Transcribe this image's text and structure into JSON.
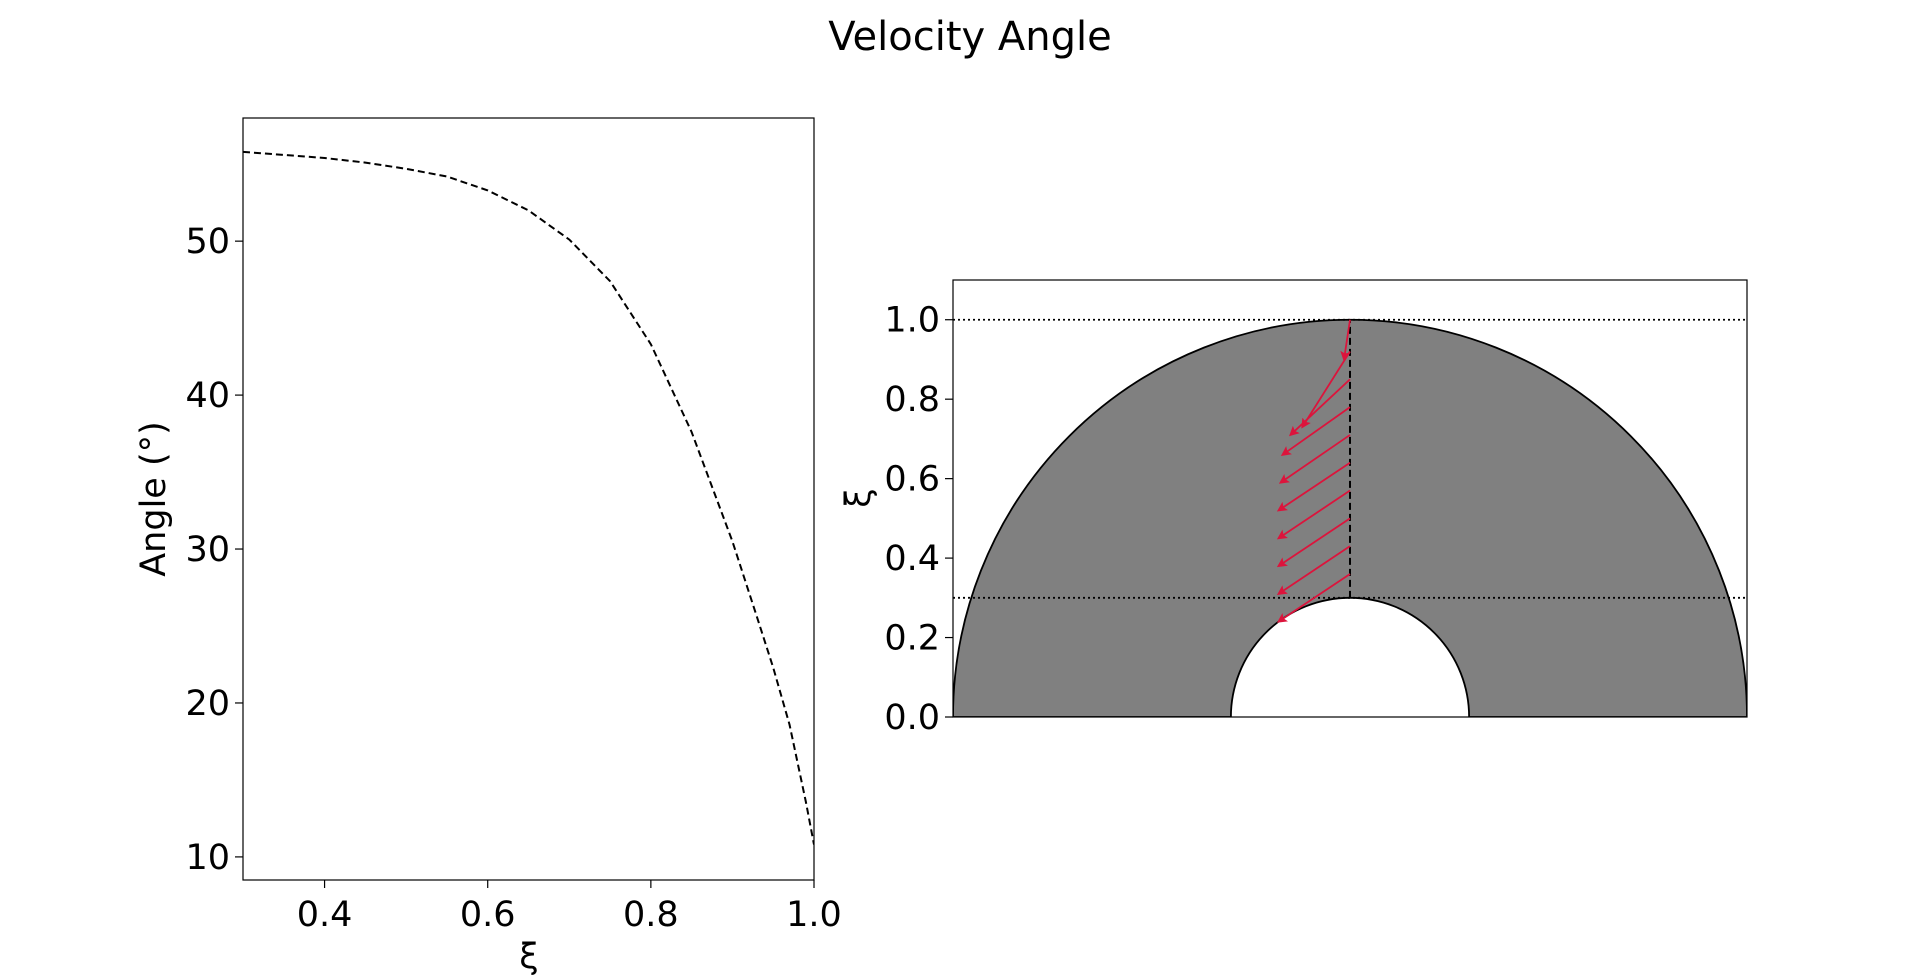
{
  "title": "Velocity Angle",
  "chart_data": [
    {
      "type": "line",
      "xlabel": "ξ",
      "ylabel": "Angle (°)",
      "xlim": [
        0.3,
        1.0
      ],
      "ylim": [
        8.5,
        58.0
      ],
      "xticks": [
        0.4,
        0.6,
        0.8,
        1.0
      ],
      "xtick_labels": [
        "0.4",
        "0.6",
        "0.8",
        "1.0"
      ],
      "yticks": [
        10,
        20,
        30,
        40,
        50
      ],
      "ytick_labels": [
        "10",
        "20",
        "30",
        "40",
        "50"
      ],
      "grid": false,
      "series": [
        {
          "line_style": "dashed",
          "color": "#000000",
          "x": [
            0.3,
            0.35,
            0.4,
            0.45,
            0.5,
            0.55,
            0.6,
            0.65,
            0.7,
            0.75,
            0.8,
            0.85,
            0.9,
            0.93,
            0.95,
            0.97,
            0.99,
            1.0
          ],
          "y": [
            55.8,
            55.6,
            55.4,
            55.1,
            54.7,
            54.2,
            53.3,
            52.0,
            50.1,
            47.4,
            43.3,
            37.6,
            30.5,
            25.6,
            22.3,
            18.6,
            13.6,
            10.8
          ]
        }
      ]
    },
    {
      "type": "diagram",
      "ylabel": "ξ",
      "ylim": [
        0.0,
        1.1
      ],
      "xlim": [
        -1.0,
        1.0
      ],
      "yticks": [
        0.0,
        0.2,
        0.4,
        0.6,
        0.8,
        1.0
      ],
      "ytick_labels": [
        "0.0",
        "0.2",
        "0.4",
        "0.6",
        "0.8",
        "1.0"
      ],
      "outer_radius": 1.0,
      "inner_radius": 0.3,
      "annulus_color": "#808080",
      "reference_lines": [
        1.0,
        0.3
      ],
      "arrow_color": "#dc143c",
      "arrows": [
        {
          "xi": 1.0,
          "dx": -0.015,
          "dy": -0.1
        },
        {
          "xi": 0.92,
          "dx": -0.12,
          "dy": -0.19
        },
        {
          "xi": 0.85,
          "dx": -0.15,
          "dy": -0.14
        },
        {
          "xi": 0.78,
          "dx": -0.17,
          "dy": -0.12
        },
        {
          "xi": 0.71,
          "dx": -0.175,
          "dy": -0.12
        },
        {
          "xi": 0.64,
          "dx": -0.18,
          "dy": -0.12
        },
        {
          "xi": 0.57,
          "dx": -0.18,
          "dy": -0.12
        },
        {
          "xi": 0.5,
          "dx": -0.18,
          "dy": -0.12
        },
        {
          "xi": 0.43,
          "dx": -0.18,
          "dy": -0.12
        },
        {
          "xi": 0.36,
          "dx": -0.18,
          "dy": -0.12
        }
      ]
    }
  ]
}
